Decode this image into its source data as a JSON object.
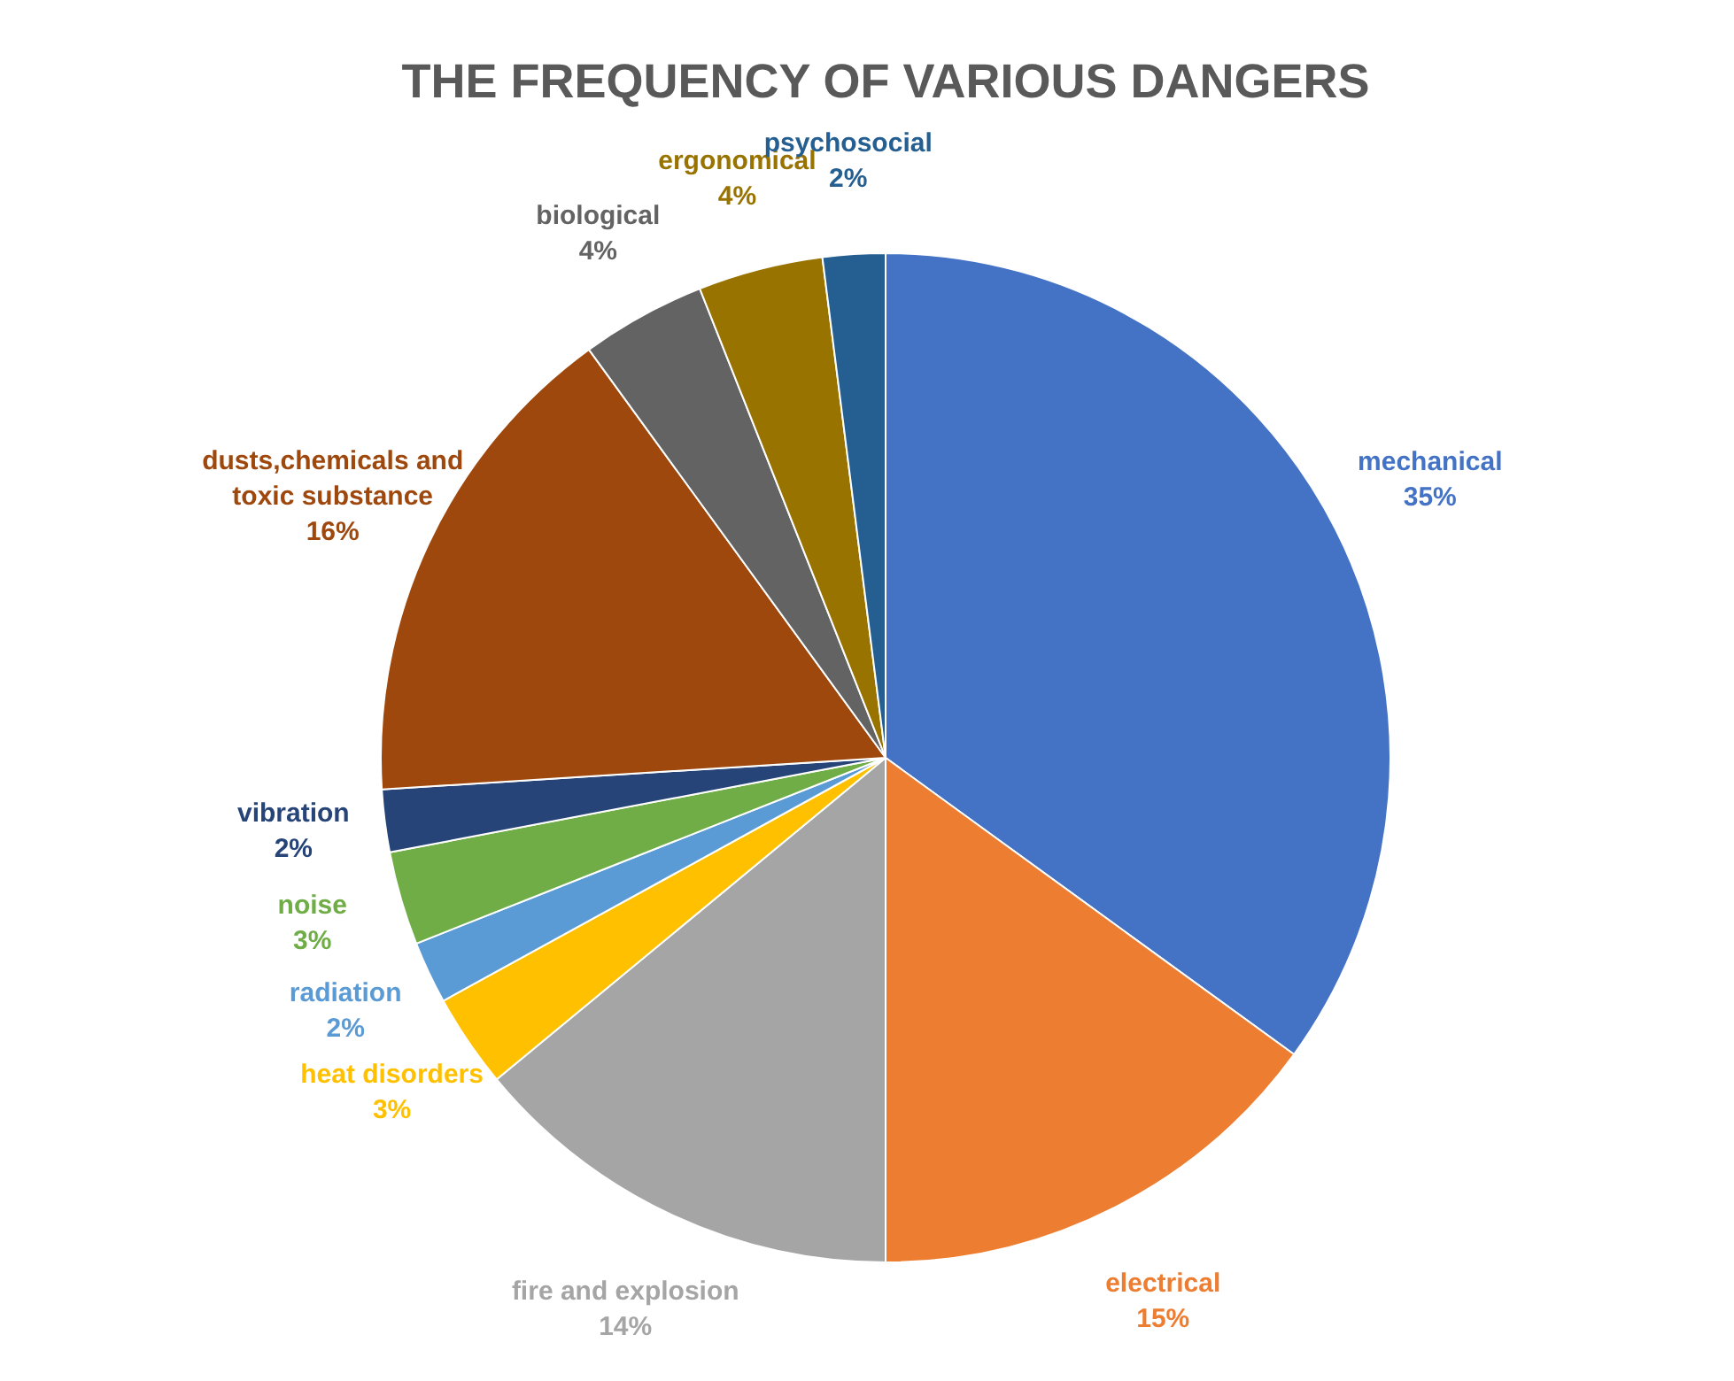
{
  "chart_data": {
    "type": "pie",
    "title": "THE FREQUENCY OF VARIOUS DANGERS",
    "categories": [
      "mechanical",
      "electrical",
      "fire and explosion",
      "heat disorders",
      "radiation",
      "noise",
      "vibration",
      "dusts,chemicals and toxic substance",
      "biological",
      "ergonomical",
      "psychosocial"
    ],
    "values": [
      35,
      15,
      14,
      3,
      2,
      3,
      2,
      16,
      4,
      4,
      2
    ],
    "value_labels": [
      "35%",
      "15%",
      "14%",
      "3%",
      "2%",
      "3%",
      "2%",
      "16%",
      "4%",
      "4%",
      "2%"
    ],
    "colors": [
      "#4472c4",
      "#ed7d31",
      "#a5a5a5",
      "#ffc000",
      "#5b9bd5",
      "#70ad47",
      "#264478",
      "#9e480e",
      "#636363",
      "#997300",
      "#255e91"
    ]
  }
}
